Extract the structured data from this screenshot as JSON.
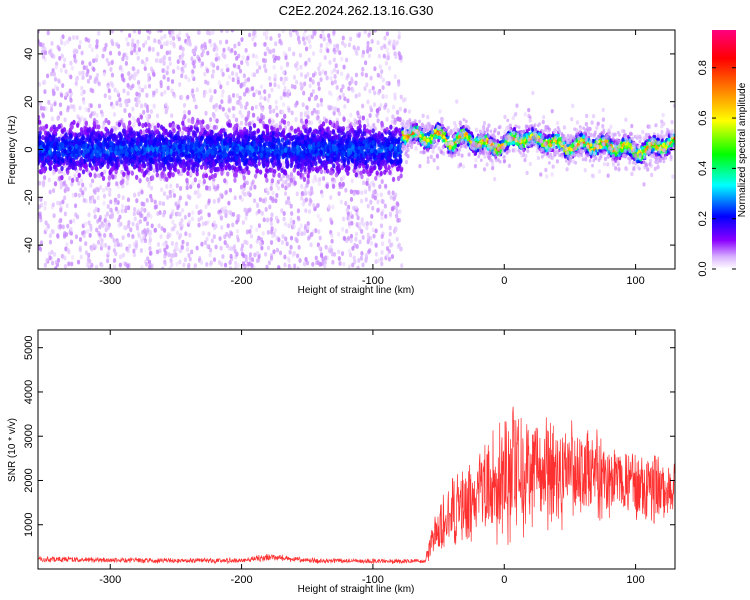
{
  "title": "C2E2.2024.262.13.16.G30",
  "chart_data": [
    {
      "type": "heatmap",
      "xlabel": "Height of straight line (km)",
      "ylabel": "Frequency (Hz)",
      "xlim": [
        -355,
        130
      ],
      "ylim": [
        -50,
        50
      ],
      "xticks": [
        -300,
        -200,
        -100,
        0,
        100
      ],
      "yticks": [
        -40,
        -20,
        0,
        20,
        40
      ],
      "colorbar": {
        "label": "Normalized spectral amplitude",
        "range": [
          0,
          0.95
        ],
        "ticks": [
          "0.0",
          "0.2",
          "0.4",
          "0.6",
          "0.8"
        ],
        "tick_values": [
          0.0,
          0.2,
          0.4,
          0.6,
          0.8
        ],
        "colors": [
          "#ffffff",
          "#8a00ff",
          "#0000ff",
          "#00ffff",
          "#00ff00",
          "#ffff00",
          "#ff8000",
          "#ff0000",
          "#ff0080"
        ]
      },
      "noise_region": {
        "x": [
          -355,
          -78
        ],
        "center_freq": 0,
        "spread": 50,
        "amplitude": 0.15
      },
      "signal_track": {
        "x": [
          -78,
          -70,
          -60,
          -50,
          -40,
          -30,
          -20,
          -10,
          0,
          10,
          20,
          30,
          40,
          50,
          60,
          70,
          80,
          90,
          100,
          110,
          120,
          130
        ],
        "freq": [
          7,
          6,
          5,
          6,
          3,
          5,
          3,
          1,
          2,
          5,
          4,
          4,
          2,
          1,
          2,
          2,
          1,
          1,
          -1,
          0,
          2,
          3
        ],
        "amplitude": 0.8
      }
    },
    {
      "type": "line",
      "xlabel": "Height of straight line (km)",
      "ylabel": "SNR (10 * v/v)",
      "xlim": [
        -355,
        130
      ],
      "ylim": [
        0,
        5400
      ],
      "xticks": [
        -300,
        -200,
        -100,
        0,
        100
      ],
      "yticks": [
        1000,
        2000,
        3000,
        4000,
        5000
      ],
      "color": "#ff3030",
      "envelope": {
        "x": [
          -355,
          -300,
          -250,
          -200,
          -175,
          -150,
          -100,
          -60,
          -55,
          -50,
          -40,
          -30,
          -20,
          -10,
          0,
          10,
          20,
          30,
          40,
          50,
          60,
          70,
          80,
          90,
          100,
          110,
          120,
          130
        ],
        "mean": [
          220,
          200,
          190,
          195,
          280,
          190,
          180,
          180,
          600,
          900,
          1200,
          1300,
          1700,
          2000,
          2200,
          2100,
          2300,
          2200,
          2100,
          2300,
          2200,
          2100,
          2000,
          2000,
          1900,
          1800,
          1750,
          1700
        ],
        "spread": [
          80,
          70,
          60,
          70,
          100,
          60,
          60,
          60,
          500,
          700,
          900,
          1000,
          1200,
          1400,
          1800,
          1600,
          1500,
          1400,
          1400,
          1200,
          1200,
          1100,
          1000,
          1000,
          900,
          900,
          800,
          800
        ]
      }
    }
  ]
}
